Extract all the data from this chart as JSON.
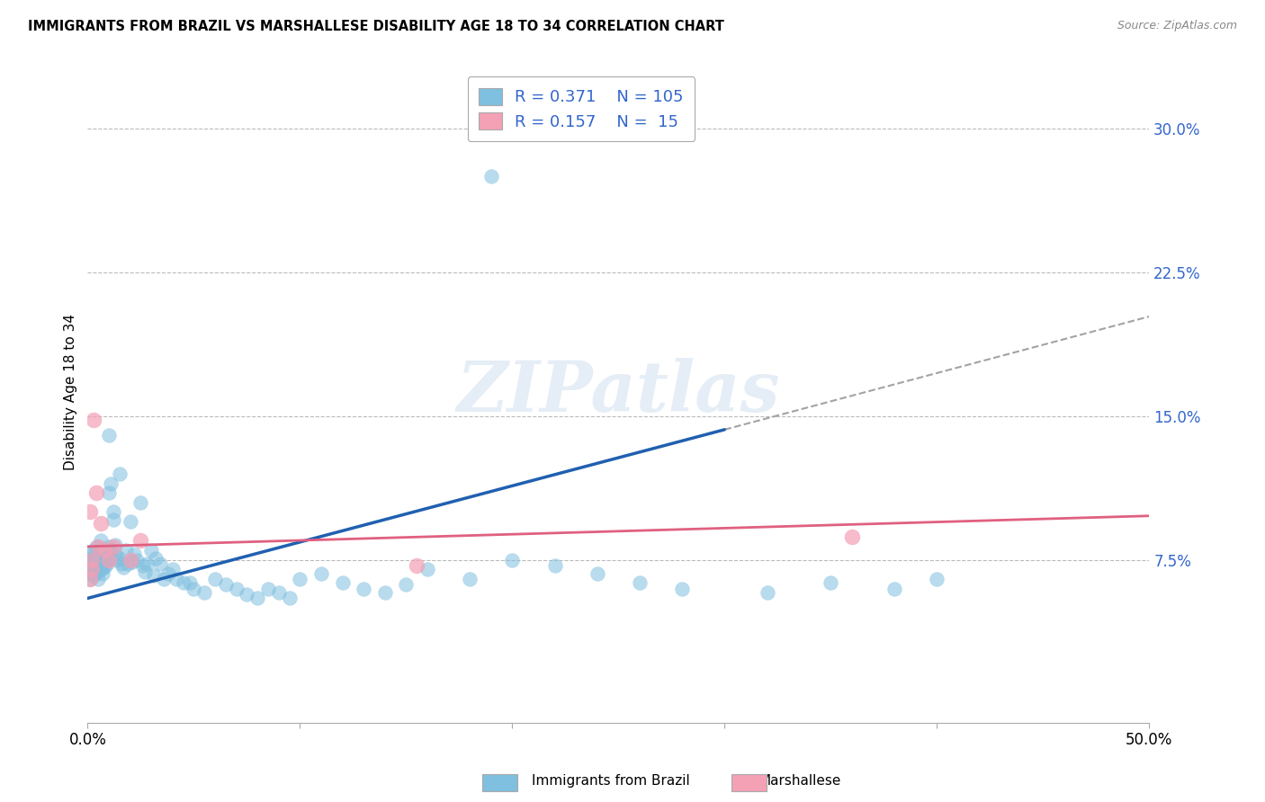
{
  "title": "IMMIGRANTS FROM BRAZIL VS MARSHALLESE DISABILITY AGE 18 TO 34 CORRELATION CHART",
  "source": "Source: ZipAtlas.com",
  "ylabel": "Disability Age 18 to 34",
  "y_tick_values": [
    0.075,
    0.15,
    0.225,
    0.3
  ],
  "xlim": [
    0.0,
    0.5
  ],
  "ylim": [
    -0.01,
    0.335
  ],
  "brazil_color": "#7fbfdf",
  "marsh_color": "#f4a0b5",
  "brazil_line_color": "#2060b0",
  "marsh_line_color": "#e06080",
  "grid_color": "#bbbbbb",
  "background_color": "#ffffff",
  "brazil_line_x0": 0.0,
  "brazil_line_x1": 0.3,
  "brazil_line_y0": 0.055,
  "brazil_line_y1": 0.143,
  "dash_line_x0": 0.3,
  "dash_line_x1": 0.5,
  "dash_line_y0": 0.143,
  "dash_line_y1": 0.202,
  "marsh_line_x0": 0.0,
  "marsh_line_x1": 0.5,
  "marsh_line_y0": 0.082,
  "marsh_line_y1": 0.098,
  "brazil_scatter_x": [
    0.001,
    0.001,
    0.001,
    0.001,
    0.001,
    0.002,
    0.002,
    0.002,
    0.002,
    0.002,
    0.002,
    0.003,
    0.003,
    0.003,
    0.003,
    0.003,
    0.004,
    0.004,
    0.004,
    0.004,
    0.004,
    0.005,
    0.005,
    0.005,
    0.005,
    0.005,
    0.006,
    0.006,
    0.006,
    0.006,
    0.006,
    0.007,
    0.007,
    0.007,
    0.007,
    0.008,
    0.008,
    0.008,
    0.008,
    0.009,
    0.009,
    0.009,
    0.01,
    0.01,
    0.01,
    0.011,
    0.011,
    0.012,
    0.012,
    0.013,
    0.013,
    0.014,
    0.015,
    0.015,
    0.016,
    0.017,
    0.018,
    0.019,
    0.02,
    0.021,
    0.022,
    0.023,
    0.025,
    0.026,
    0.027,
    0.028,
    0.03,
    0.031,
    0.032,
    0.034,
    0.036,
    0.038,
    0.04,
    0.042,
    0.045,
    0.048,
    0.05,
    0.055,
    0.06,
    0.065,
    0.07,
    0.075,
    0.08,
    0.085,
    0.09,
    0.095,
    0.1,
    0.11,
    0.12,
    0.13,
    0.14,
    0.15,
    0.16,
    0.18,
    0.2,
    0.22,
    0.24,
    0.26,
    0.28,
    0.32,
    0.35,
    0.38,
    0.4,
    0.19,
    0.01
  ],
  "brazil_scatter_y": [
    0.07,
    0.073,
    0.068,
    0.065,
    0.075,
    0.072,
    0.069,
    0.076,
    0.074,
    0.071,
    0.078,
    0.073,
    0.07,
    0.067,
    0.08,
    0.075,
    0.072,
    0.069,
    0.076,
    0.073,
    0.082,
    0.075,
    0.078,
    0.072,
    0.069,
    0.065,
    0.076,
    0.08,
    0.073,
    0.07,
    0.085,
    0.078,
    0.074,
    0.071,
    0.068,
    0.08,
    0.077,
    0.074,
    0.071,
    0.079,
    0.075,
    0.073,
    0.11,
    0.082,
    0.078,
    0.115,
    0.08,
    0.096,
    0.1,
    0.083,
    0.078,
    0.075,
    0.12,
    0.076,
    0.073,
    0.071,
    0.08,
    0.073,
    0.095,
    0.074,
    0.078,
    0.075,
    0.105,
    0.072,
    0.069,
    0.073,
    0.08,
    0.067,
    0.076,
    0.073,
    0.065,
    0.068,
    0.07,
    0.065,
    0.063,
    0.063,
    0.06,
    0.058,
    0.065,
    0.062,
    0.06,
    0.057,
    0.055,
    0.06,
    0.058,
    0.055,
    0.065,
    0.068,
    0.063,
    0.06,
    0.058,
    0.062,
    0.07,
    0.065,
    0.075,
    0.072,
    0.068,
    0.063,
    0.06,
    0.058,
    0.063,
    0.06,
    0.065,
    0.275,
    0.14
  ],
  "marsh_scatter_x": [
    0.001,
    0.001,
    0.002,
    0.003,
    0.004,
    0.005,
    0.006,
    0.008,
    0.012,
    0.02,
    0.025,
    0.155,
    0.36,
    0.002,
    0.01
  ],
  "marsh_scatter_y": [
    0.1,
    0.065,
    0.075,
    0.148,
    0.11,
    0.082,
    0.094,
    0.08,
    0.082,
    0.075,
    0.085,
    0.072,
    0.087,
    0.07,
    0.075
  ]
}
